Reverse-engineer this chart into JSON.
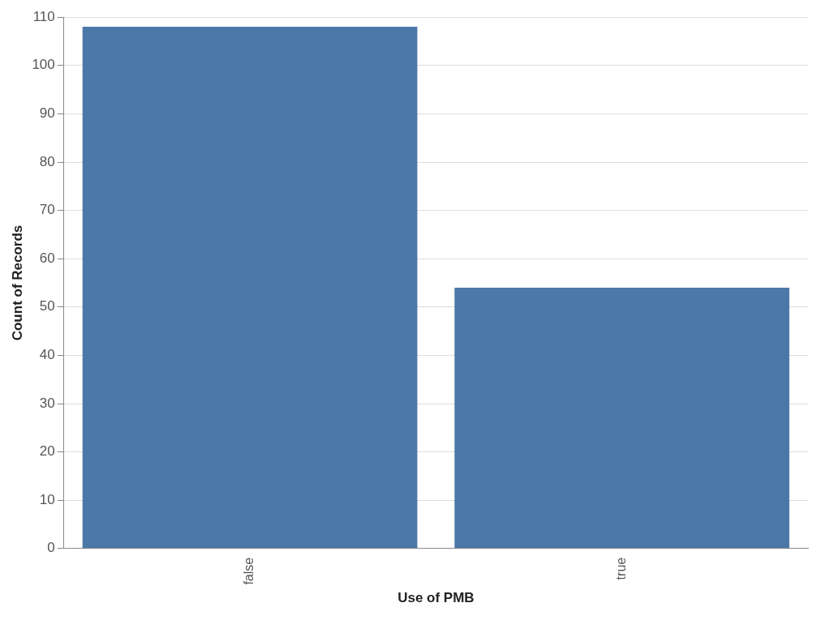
{
  "chart_data": {
    "type": "bar",
    "xlabel": "Use of PMB",
    "ylabel": "Count of Records",
    "categories": [
      "false",
      "true"
    ],
    "values": [
      108,
      54
    ],
    "color": "#4c78a8",
    "ylim": [
      0,
      110
    ],
    "yticks": [
      0,
      10,
      20,
      30,
      40,
      50,
      60,
      70,
      80,
      90,
      100,
      110
    ],
    "grid": "y"
  }
}
